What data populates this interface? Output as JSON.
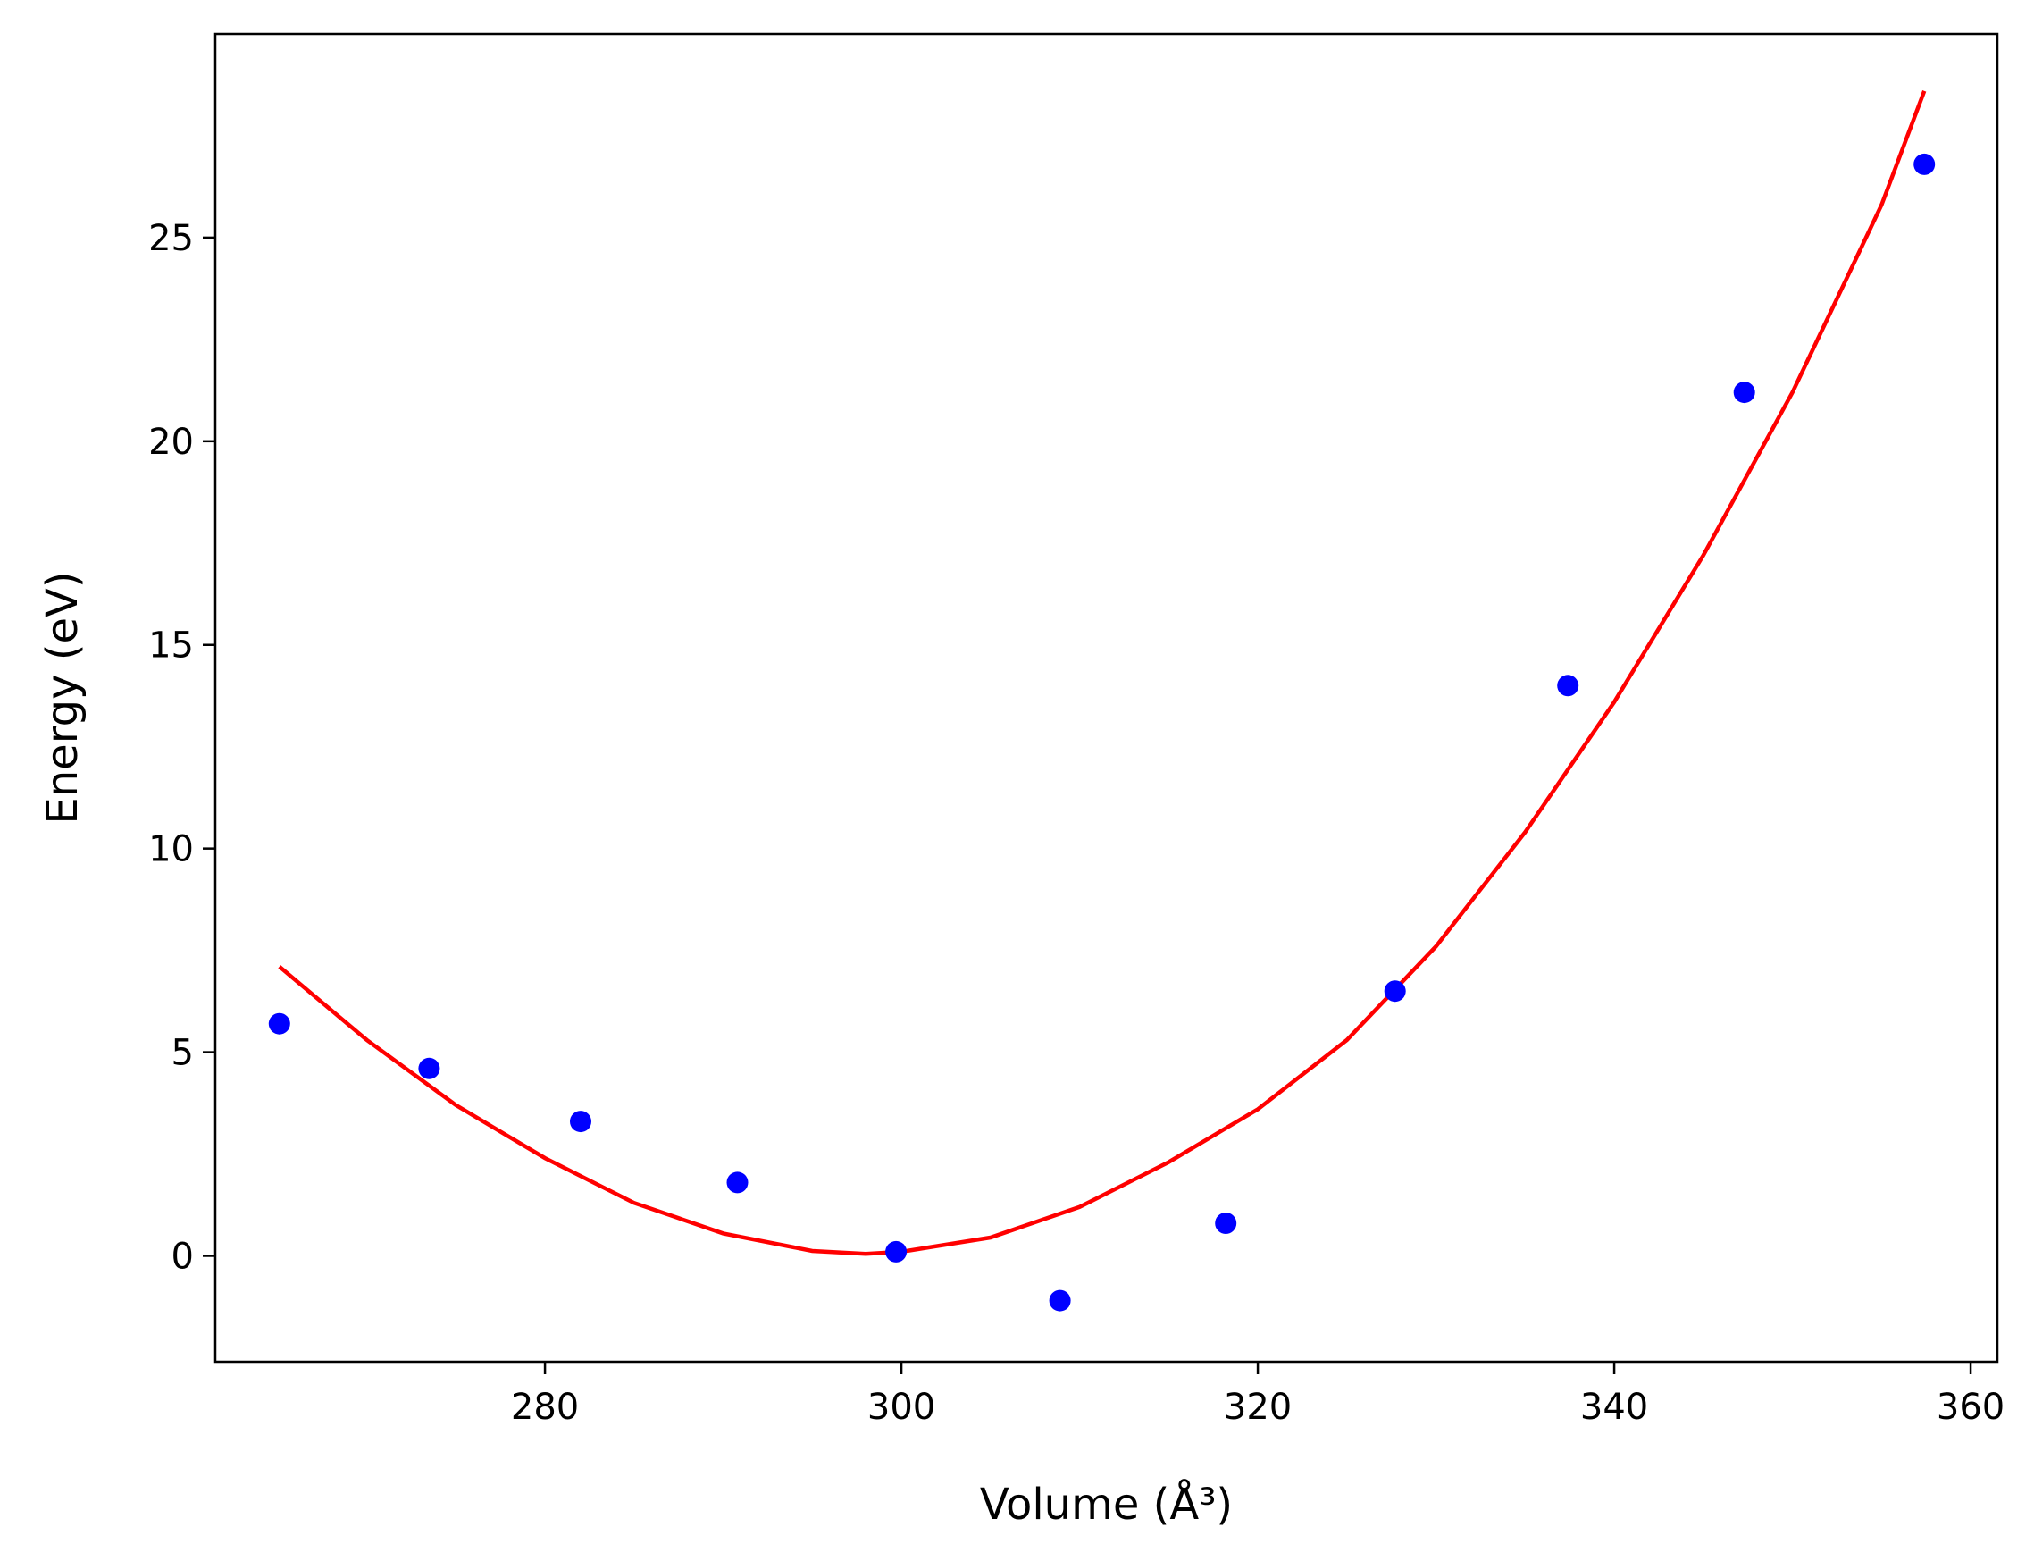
{
  "chart_data": {
    "type": "scatter",
    "xlabel": "Volume (Å³)",
    "ylabel": "Energy (eV)",
    "xlim": [
      261.5,
      361.5
    ],
    "ylim": [
      -2.6,
      30.0
    ],
    "grid": false,
    "xticks": [
      280,
      300,
      320,
      340,
      360
    ],
    "yticks": [
      0,
      5,
      10,
      15,
      20,
      25
    ],
    "xtick_labels": [
      "280",
      "300",
      "320",
      "340",
      "360"
    ],
    "ytick_labels": [
      "0",
      "5",
      "10",
      "15",
      "20",
      "25"
    ],
    "series": [
      {
        "kind": "scatter",
        "color": "#0000ff",
        "points": [
          {
            "x": 265.1,
            "y": 5.7
          },
          {
            "x": 273.5,
            "y": 4.6
          },
          {
            "x": 282.0,
            "y": 3.3
          },
          {
            "x": 290.8,
            "y": 1.8
          },
          {
            "x": 299.7,
            "y": 0.1
          },
          {
            "x": 308.9,
            "y": -1.1
          },
          {
            "x": 318.2,
            "y": 0.8
          },
          {
            "x": 327.7,
            "y": 6.5
          },
          {
            "x": 337.4,
            "y": 14.0
          },
          {
            "x": 347.3,
            "y": 21.2
          },
          {
            "x": 357.4,
            "y": 26.8
          }
        ]
      },
      {
        "kind": "line",
        "color": "#ff0000",
        "points": [
          {
            "x": 265.1,
            "y": 7.1
          },
          {
            "x": 270.0,
            "y": 5.3
          },
          {
            "x": 275.0,
            "y": 3.7
          },
          {
            "x": 280.0,
            "y": 2.4
          },
          {
            "x": 285.0,
            "y": 1.3
          },
          {
            "x": 290.0,
            "y": 0.55
          },
          {
            "x": 295.0,
            "y": 0.12
          },
          {
            "x": 298.0,
            "y": 0.05
          },
          {
            "x": 300.0,
            "y": 0.1
          },
          {
            "x": 305.0,
            "y": 0.45
          },
          {
            "x": 310.0,
            "y": 1.2
          },
          {
            "x": 315.0,
            "y": 2.3
          },
          {
            "x": 320.0,
            "y": 3.6
          },
          {
            "x": 325.0,
            "y": 5.3
          },
          {
            "x": 330.0,
            "y": 7.6
          },
          {
            "x": 335.0,
            "y": 10.4
          },
          {
            "x": 340.0,
            "y": 13.6
          },
          {
            "x": 345.0,
            "y": 17.2
          },
          {
            "x": 350.0,
            "y": 21.2
          },
          {
            "x": 355.0,
            "y": 25.8
          },
          {
            "x": 357.4,
            "y": 28.6
          }
        ]
      }
    ]
  }
}
